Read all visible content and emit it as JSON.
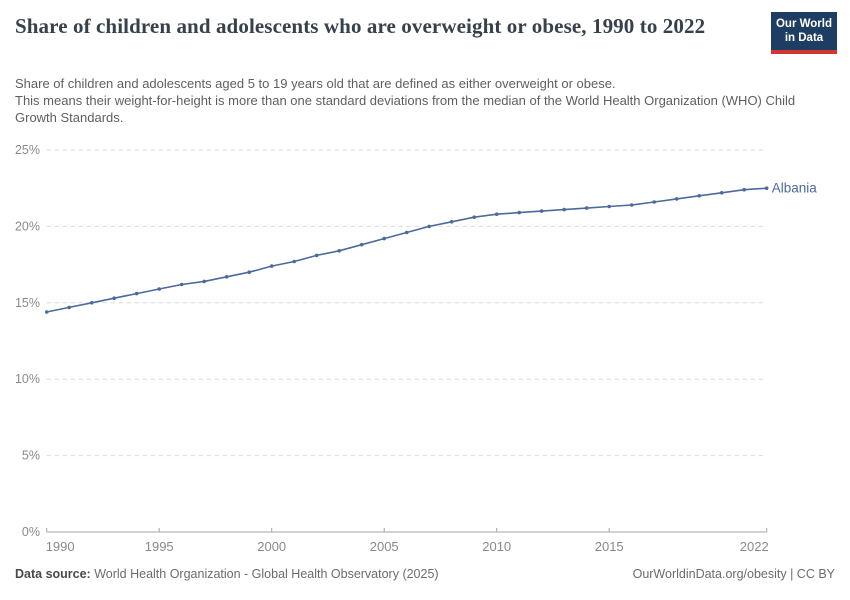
{
  "header": {
    "title": "Share of children and adolescents who are overweight or obese, 1990 to 2022",
    "subtitle": [
      "Share of children and adolescents aged 5 to 19 years old that are defined as either overweight or obese.",
      "This means their weight-for-height is more than one standard deviations from the median of the World Health Organization (WHO) Child Growth Standards."
    ],
    "logo": {
      "line1": "Our World",
      "line2": "in Data"
    }
  },
  "chart_data": {
    "type": "line",
    "title": "Share of children and adolescents who are overweight or obese, 1990 to 2022",
    "xlabel": "",
    "ylabel": "",
    "xlim": [
      1990,
      2022
    ],
    "ylim": [
      0,
      25
    ],
    "grid": "horizontal-dashed",
    "legend_position": "end-of-line-label",
    "x_tick_labels": [
      "1990",
      "1995",
      "2000",
      "2005",
      "2010",
      "2015",
      "2022"
    ],
    "y_tick_labels": [
      "0%",
      "5%",
      "10%",
      "15%",
      "20%",
      "25%"
    ],
    "x": [
      1990,
      1991,
      1992,
      1993,
      1994,
      1995,
      1996,
      1997,
      1998,
      1999,
      2000,
      2001,
      2002,
      2003,
      2004,
      2005,
      2006,
      2007,
      2008,
      2009,
      2010,
      2011,
      2012,
      2013,
      2014,
      2015,
      2016,
      2017,
      2018,
      2019,
      2020,
      2021,
      2022
    ],
    "series": [
      {
        "name": "Albania",
        "color": "#4c6a9c",
        "values": [
          14.4,
          14.7,
          15.0,
          15.3,
          15.6,
          15.9,
          16.2,
          16.4,
          16.7,
          17.0,
          17.4,
          17.7,
          18.1,
          18.4,
          18.8,
          19.2,
          19.6,
          20.0,
          20.3,
          20.6,
          20.8,
          20.9,
          21.0,
          21.1,
          21.2,
          21.3,
          21.4,
          21.6,
          21.8,
          22.0,
          22.2,
          22.4,
          22.5
        ]
      }
    ]
  },
  "footer": {
    "datasource_label": "Data source:",
    "datasource_value": " World Health Organization - Global Health Observatory (2025)",
    "rights": "OurWorldinData.org/obesity | CC BY"
  },
  "colors": {
    "accent_line": "#4c6a9c",
    "logo_bg": "#1d3d63",
    "logo_bar": "#d13832",
    "gridline": "#d9d9d9",
    "axis": "#a5a5a5",
    "tick_label": "#8a8a8a",
    "title_text": "#36414c",
    "body_text": "#5f5f5f"
  }
}
